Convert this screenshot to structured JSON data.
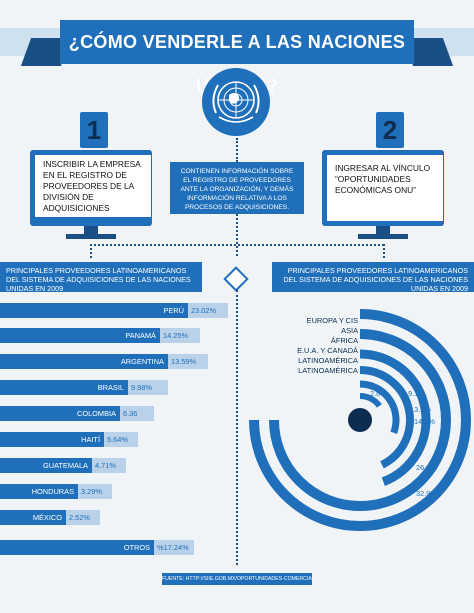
{
  "title": "¿CÓMO VENDERLE A LAS NACIONES UNIDAS?",
  "steps": [
    {
      "number": "1",
      "text": "INSCRIBIR LA EMPRESA EN EL REGISTRO DE PROVEEDORES DE LA DIVISIÓN DE ADQUISICIONES"
    },
    {
      "number": "2",
      "text": "INGRESAR AL VÍNCULO “OPORTUNIDADES ECONÓMICAS ONU”"
    }
  ],
  "middle_note": "CONTIENEN INFORMACIÓN SOBRE EL REGISTRO DE PROVEEDORES ANTE LA ORGANIZACIÓN, Y DEMÁS INFORMACIÓN RELATIVA A LOS PROCESOS DE ADQUISICIONES.",
  "left_header": "PRINCIPALES PROVEEDORES LATINOAMERICANOS DEL SISTEMA DE ADQUISICIONES DE LAS NACIONES UNIDAS EN 2009",
  "right_header": "PRINCIPALES PROVEEDORES LATINOAMERICANOS DEL SISTEMA DE ADQUISICIONES DE LAS NACIONES UNIDAS EN 2009",
  "bars": [
    {
      "country": "PERÚ",
      "pct": "23.02%",
      "value": 23.02
    },
    {
      "country": "PANAMÁ",
      "pct": "14.25%",
      "value": 14.25
    },
    {
      "country": "ARGENTINA",
      "pct": "13.59%",
      "value": 13.59
    },
    {
      "country": "BRASIL",
      "pct": "9.98%",
      "value": 9.98
    },
    {
      "country": "COLOMBIA",
      "pct": "6.36",
      "value": 6.36
    },
    {
      "country": "HAITÍ",
      "pct": "5.64%",
      "value": 5.64
    },
    {
      "country": "GUATEMALA",
      "pct": "4.71%",
      "value": 4.71
    },
    {
      "country": "HONDURAS",
      "pct": "3.29%",
      "value": 3.29
    },
    {
      "country": "MÉXICO",
      "pct": "2.52%",
      "value": 2.52
    },
    {
      "country": "OTROS",
      "pct": "%17.24%",
      "value": 17.24
    }
  ],
  "arcs": [
    {
      "label": "EUROPA Y CIS",
      "pct": "32.9%",
      "value": 32.9
    },
    {
      "label": "ASIA",
      "pct": "26.8%",
      "value": 26.8
    },
    {
      "label": "ÁFRICA",
      "pct": "14.5%",
      "value": 14.5
    },
    {
      "label": "E.U.A. Y CANADÁ",
      "pct": "13.9%",
      "value": 13.9
    },
    {
      "label": "LATINOAMÉRICA",
      "pct": "9.1%",
      "value": 9.1
    },
    {
      "label": "LATINOAMÉRICA",
      "pct": "2.8%",
      "value": 2.8
    }
  ],
  "source": "FUENTE: HTTP://SIIE.GOB.MX/OPORTUNIDADES-COMERCIALES-CON-NACIONES-UNIDAS",
  "colors": {
    "primary": "#1f6fba",
    "dark": "#1a4f86",
    "light": "#b9d2e9",
    "background": "#f1f4f7"
  }
}
